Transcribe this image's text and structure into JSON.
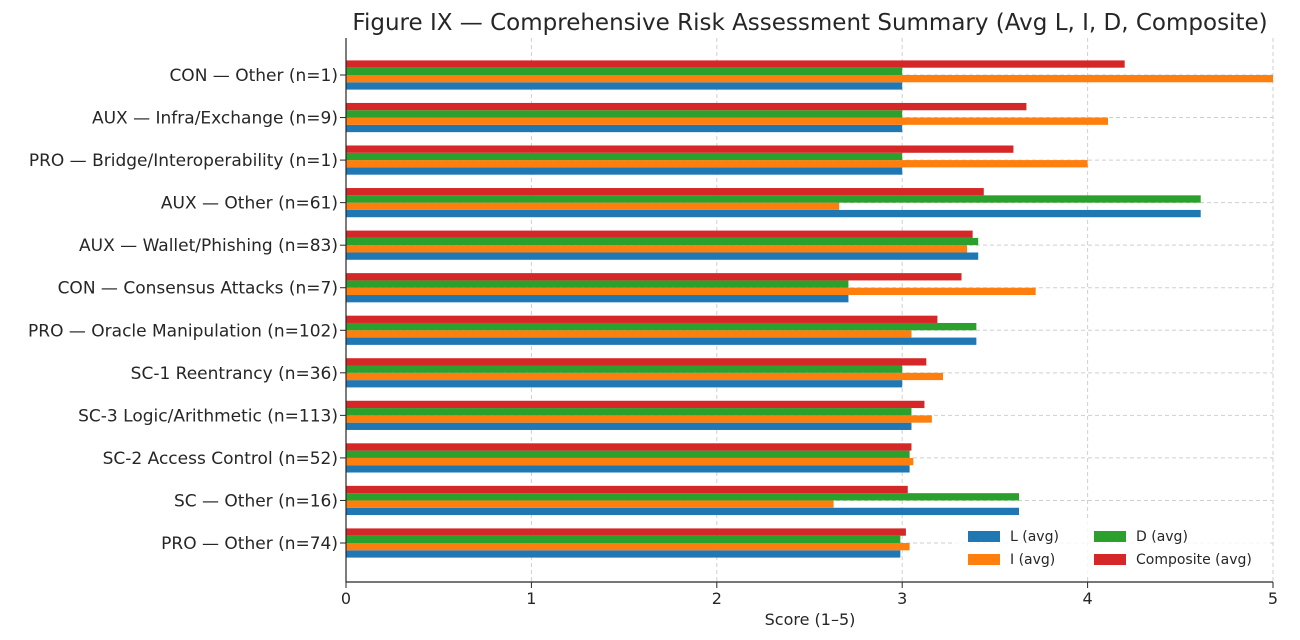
{
  "chart_data": {
    "type": "bar",
    "orientation": "horizontal",
    "title": "Figure IX — Comprehensive Risk Assessment Summary (Avg L, I, D, Composite)",
    "xlabel": "Score (1–5)",
    "ylabel": "",
    "xlim": [
      0,
      5
    ],
    "xticks": [
      "0",
      "1",
      "2",
      "3",
      "4",
      "5"
    ],
    "grid": true,
    "legend_position": "lower-right",
    "categories": [
      "CON — Other (n=1)",
      "AUX — Infra/Exchange (n=9)",
      "PRO — Bridge/Interoperability (n=1)",
      "AUX — Other (n=61)",
      "AUX — Wallet/Phishing (n=83)",
      "CON — Consensus Attacks (n=7)",
      "PRO — Oracle Manipulation (n=102)",
      "SC-1 Reentrancy (n=36)",
      "SC-3 Logic/Arithmetic (n=113)",
      "SC-2 Access Control (n=52)",
      "SC — Other (n=16)",
      "PRO — Other (n=74)"
    ],
    "series": [
      {
        "name": "L (avg)",
        "color": "#1f77b4",
        "values": [
          3.0,
          3.0,
          3.0,
          4.61,
          3.41,
          2.71,
          3.4,
          3.0,
          3.05,
          3.04,
          3.63,
          2.99
        ]
      },
      {
        "name": "I (avg)",
        "color": "#ff7f0e",
        "values": [
          5.0,
          4.11,
          4.0,
          2.66,
          3.35,
          3.72,
          3.05,
          3.22,
          3.16,
          3.06,
          2.63,
          3.04
        ]
      },
      {
        "name": "D (avg)",
        "color": "#2ca02c",
        "values": [
          3.0,
          3.0,
          3.0,
          4.61,
          3.41,
          2.71,
          3.4,
          3.0,
          3.05,
          3.04,
          3.63,
          2.99
        ]
      },
      {
        "name": "Composite (avg)",
        "color": "#d62728",
        "values": [
          4.2,
          3.67,
          3.6,
          3.44,
          3.38,
          3.32,
          3.19,
          3.13,
          3.12,
          3.05,
          3.03,
          3.02
        ]
      }
    ]
  }
}
